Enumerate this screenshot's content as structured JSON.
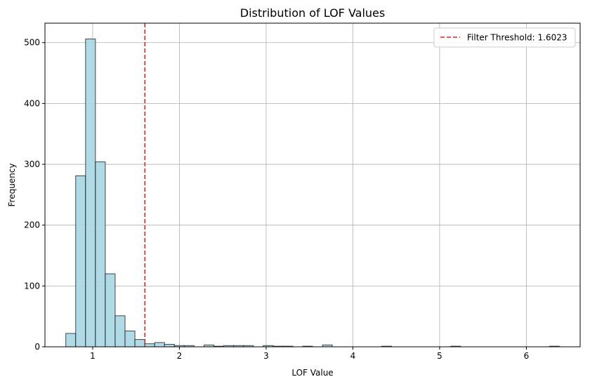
{
  "chart_data": {
    "type": "bar",
    "title": "Distribution of LOF Values",
    "xlabel": "LOF Value",
    "ylabel": "Frequency",
    "xlim": [
      0.45,
      6.62
    ],
    "ylim": [
      0,
      532
    ],
    "xticks": [
      1,
      2,
      3,
      4,
      5,
      6
    ],
    "yticks": [
      0,
      100,
      200,
      300,
      400,
      500
    ],
    "grid": true,
    "legend_position": "top-right",
    "bin_width": 0.1138,
    "bins": [
      {
        "x0": 0.6905,
        "count": 22
      },
      {
        "x0": 0.8043,
        "count": 281
      },
      {
        "x0": 0.9181,
        "count": 506
      },
      {
        "x0": 1.0319,
        "count": 304
      },
      {
        "x0": 1.1457,
        "count": 120
      },
      {
        "x0": 1.2595,
        "count": 51
      },
      {
        "x0": 1.3733,
        "count": 26
      },
      {
        "x0": 1.4871,
        "count": 12
      },
      {
        "x0": 1.6009,
        "count": 5
      },
      {
        "x0": 1.7147,
        "count": 7
      },
      {
        "x0": 1.8285,
        "count": 4
      },
      {
        "x0": 1.9423,
        "count": 2
      },
      {
        "x0": 2.0561,
        "count": 2
      },
      {
        "x0": 2.2837,
        "count": 3
      },
      {
        "x0": 2.3975,
        "count": 1
      },
      {
        "x0": 2.5113,
        "count": 2
      },
      {
        "x0": 2.6251,
        "count": 2
      },
      {
        "x0": 2.7389,
        "count": 2
      },
      {
        "x0": 2.9665,
        "count": 2
      },
      {
        "x0": 3.0803,
        "count": 1
      },
      {
        "x0": 3.1941,
        "count": 1
      },
      {
        "x0": 3.4217,
        "count": 1
      },
      {
        "x0": 3.6493,
        "count": 3
      },
      {
        "x0": 4.3321,
        "count": 1
      },
      {
        "x0": 5.1287,
        "count": 1
      },
      {
        "x0": 6.2667,
        "count": 1
      }
    ],
    "threshold": {
      "value": 1.6023,
      "label": "Filter Threshold: 1.6023"
    },
    "colors": {
      "bar_fill": "#add8e6",
      "bar_edge": "#000000",
      "threshold_line": "#d62728",
      "grid": "#b0b0b0"
    }
  }
}
